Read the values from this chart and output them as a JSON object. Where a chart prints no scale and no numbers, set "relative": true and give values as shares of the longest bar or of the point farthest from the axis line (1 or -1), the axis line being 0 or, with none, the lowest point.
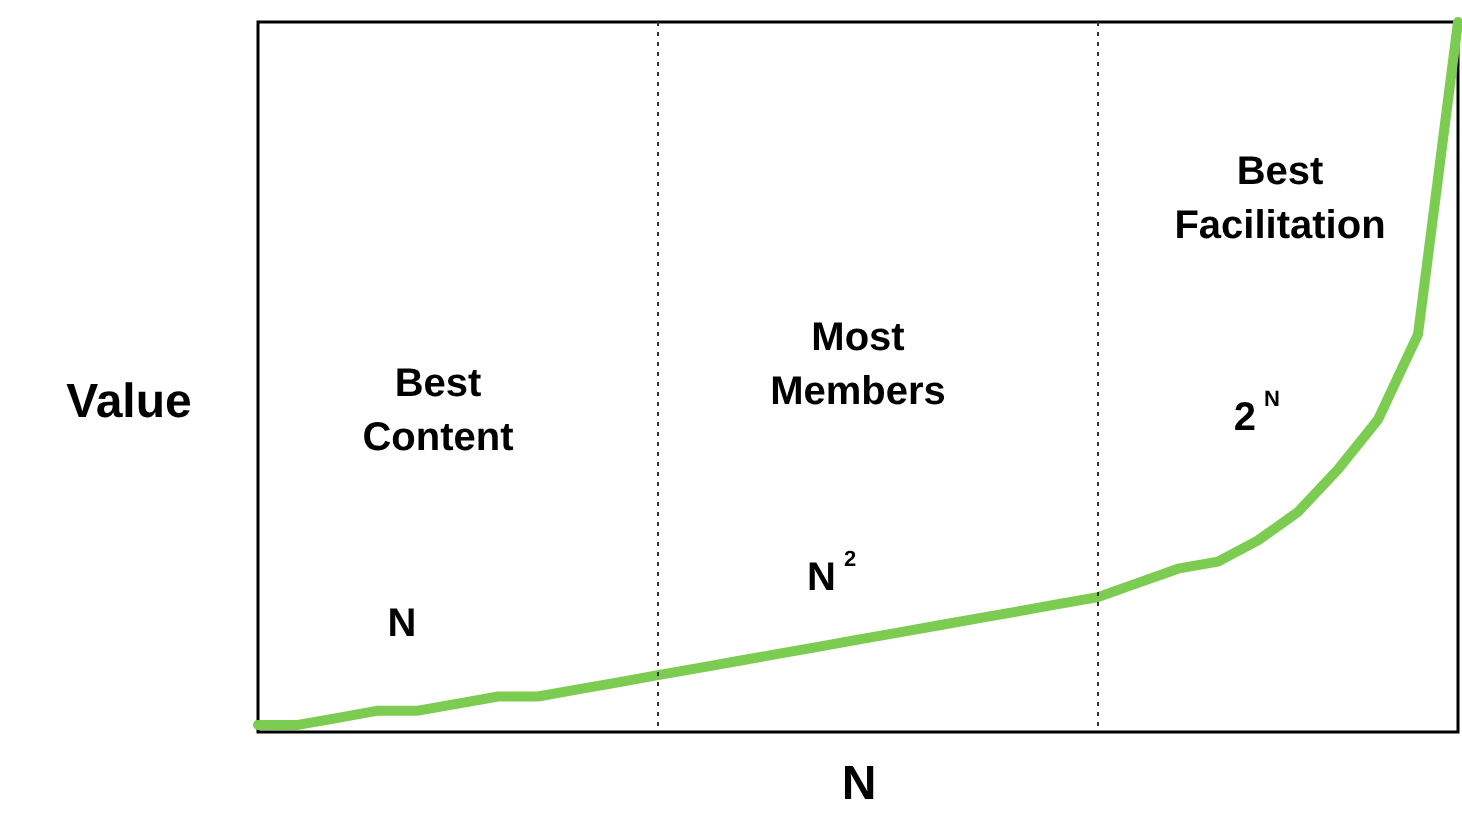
{
  "chart_data": {
    "type": "line",
    "relative": true,
    "ylabel": "Value",
    "xlabel": "N",
    "categories": [
      null,
      null,
      null,
      null,
      null,
      null,
      null,
      null,
      null,
      null,
      null,
      null,
      null,
      null,
      null,
      null,
      null,
      null,
      null,
      null,
      null,
      null,
      null,
      null,
      null,
      null,
      null,
      null,
      null,
      null,
      null
    ],
    "series": [
      {
        "color": "#7dcc52",
        "values": [
          0.01,
          0.01,
          0.02,
          0.03,
          0.03,
          0.04,
          0.05,
          0.05,
          0.06,
          0.07,
          0.08,
          0.09,
          0.1,
          0.11,
          0.12,
          0.13,
          0.14,
          0.15,
          0.16,
          0.17,
          0.18,
          0.19,
          0.21,
          0.23,
          0.24,
          0.27,
          0.31,
          0.37,
          0.44,
          0.56,
          1.0
        ]
      }
    ],
    "annotations": [
      "Best Content",
      "Most Members",
      "Best Facilitation",
      "N",
      "N$^{2}$",
      "2$^{N}$"
    ],
    "marker": "none",
    "line_style": "solid"
  }
}
